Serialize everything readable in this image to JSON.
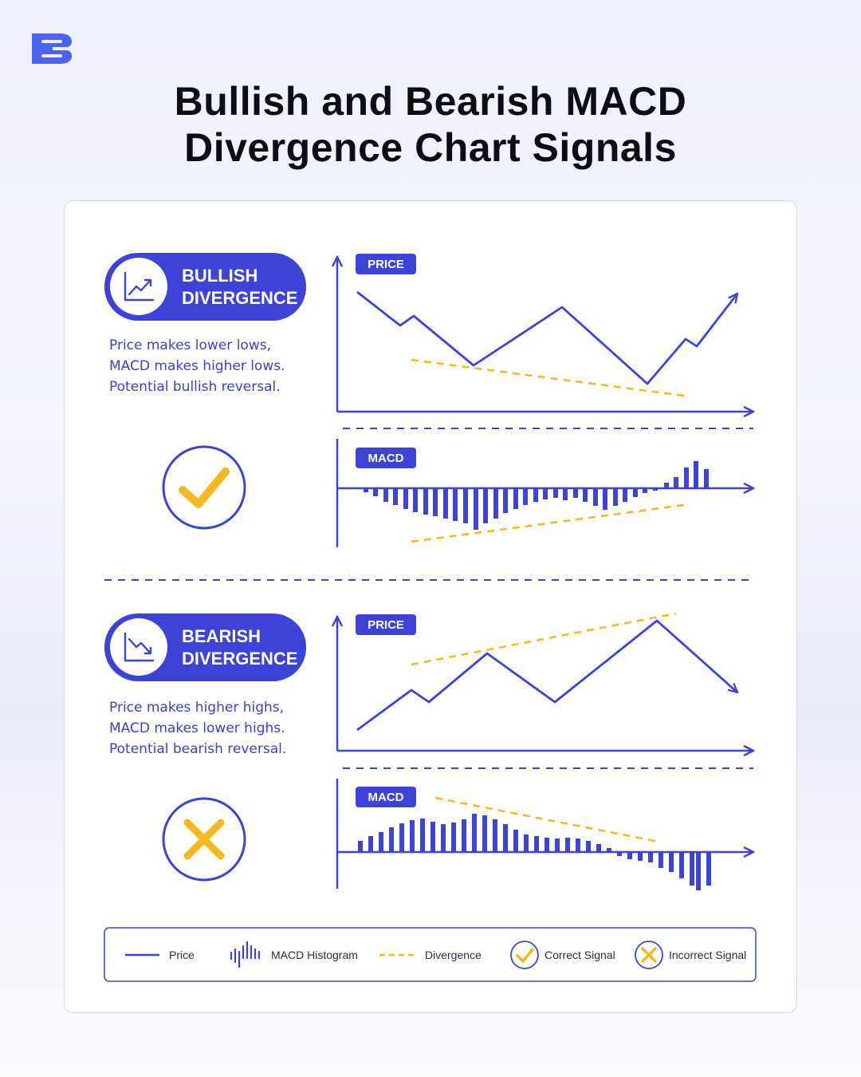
{
  "page": {
    "title_line1": "Bullish and Bearish MACD",
    "title_line2": "Divergence Chart Signals"
  },
  "colors": {
    "primary": "#3d43d6",
    "divergence": "#f5b820",
    "title": "#0d0d12"
  },
  "icons": {
    "brand": "brand-logo-icon",
    "bullish": "trend-up-chart-icon",
    "bearish": "trend-down-chart-icon",
    "correct": "check-icon",
    "incorrect": "x-icon"
  },
  "bullish": {
    "title_line1": "BULLISH",
    "title_line2": "DIVERGENCE",
    "description": [
      "Price makes lower lows,",
      "MACD makes higher lows.",
      "Potential bullish reversal."
    ],
    "price_badge": "PRICE",
    "macd_badge": "MACD",
    "signal": "correct"
  },
  "bearish": {
    "title_line1": "BEARISH",
    "title_line2": "DIVERGENCE",
    "description": [
      "Price makes higher highs,",
      "MACD makes lower highs.",
      "Potential bearish reversal."
    ],
    "price_badge": "PRICE",
    "macd_badge": "MACD",
    "signal": "incorrect"
  },
  "legend": {
    "price": "Price",
    "histogram": "MACD Histogram",
    "divergence": "Divergence",
    "correct": "Correct Signal",
    "incorrect": "Incorrect Signal"
  }
}
